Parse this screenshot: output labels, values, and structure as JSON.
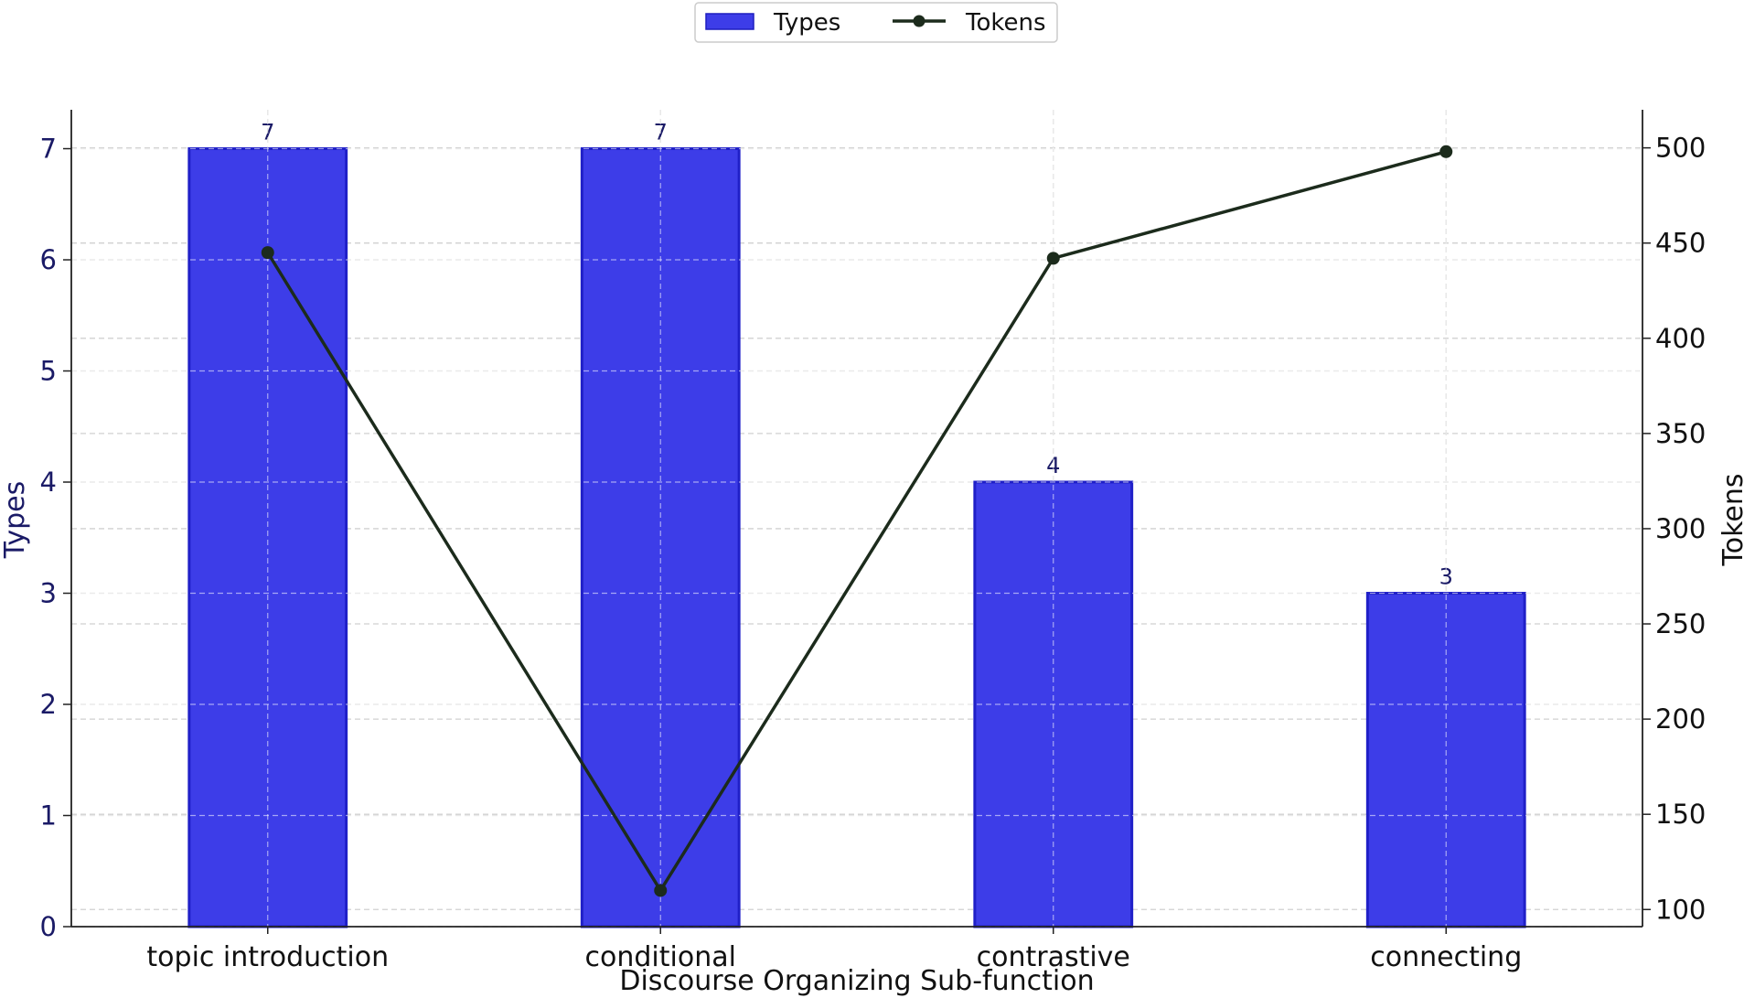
{
  "chart_data": {
    "type": "bar",
    "categories": [
      "topic introduction",
      "conditional",
      "contrastive",
      "connecting"
    ],
    "xlabel": "Discourse Organizing Sub-function",
    "series": [
      {
        "name": "Types",
        "kind": "bar",
        "axis": "left",
        "values": [
          7,
          7,
          4,
          3
        ],
        "color": "#3d3de8"
      },
      {
        "name": "Tokens",
        "kind": "line",
        "axis": "right",
        "values": [
          445,
          110,
          442,
          498
        ],
        "color": "#1c2b1c"
      }
    ],
    "y_left": {
      "label": "Types",
      "ylim": [
        0,
        7.35
      ],
      "ticks": [
        "0",
        "1",
        "2",
        "3",
        "4",
        "5",
        "6",
        "7"
      ]
    },
    "y_right": {
      "label": "Tokens",
      "ylim": [
        91,
        520
      ],
      "ticks": [
        "100",
        "150",
        "200",
        "250",
        "300",
        "350",
        "400",
        "450",
        "500"
      ]
    },
    "data_labels": [
      "7",
      "7",
      "4",
      "3"
    ],
    "grid": true,
    "legend": {
      "placement": "top-center",
      "items": [
        "Types",
        "Tokens"
      ]
    }
  }
}
